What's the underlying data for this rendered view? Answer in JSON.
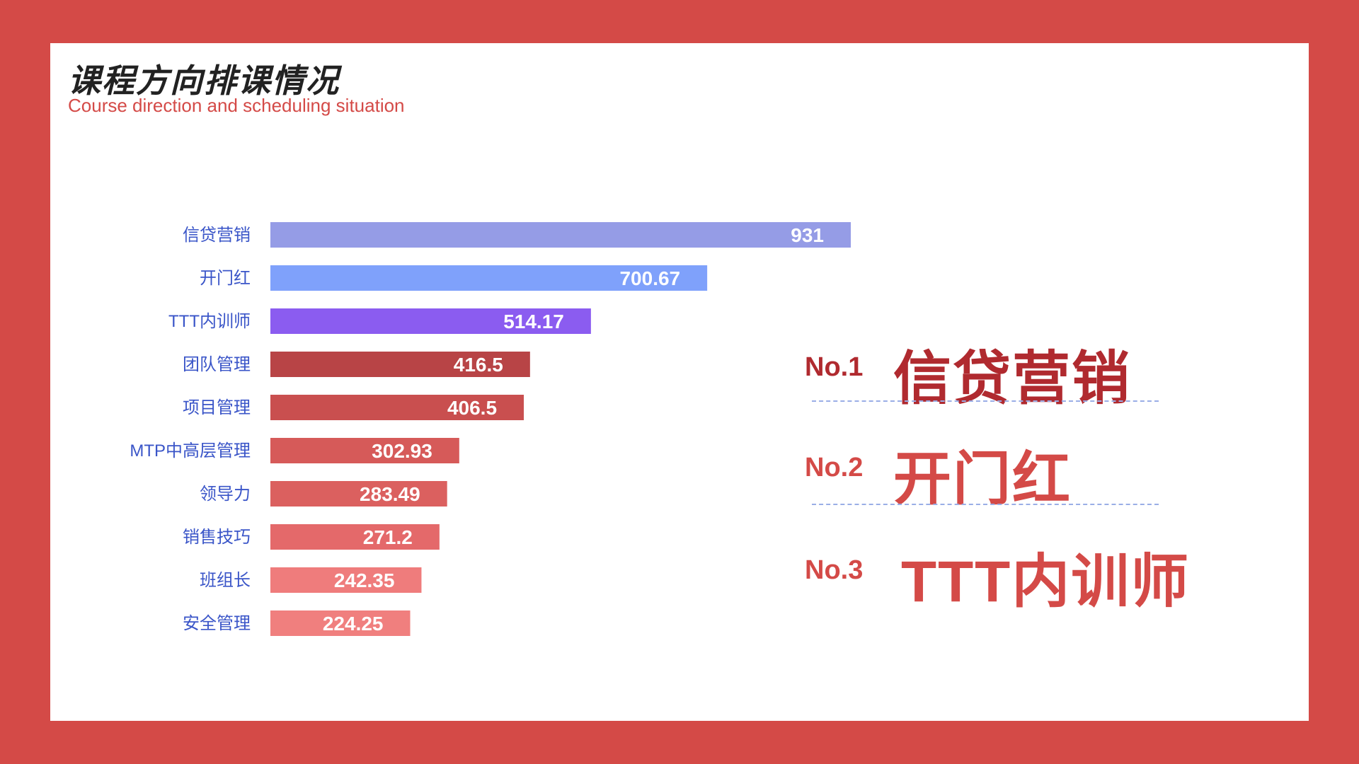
{
  "title": "课程方向排课情况",
  "subtitle": "Course direction and scheduling situation",
  "chart_data": {
    "type": "bar",
    "orientation": "horizontal",
    "categories": [
      "信贷营销",
      "开门红",
      "TTT内训师",
      "团队管理",
      "项目管理",
      "MTP中高层管理",
      "领导力",
      "销售技巧",
      "班组长",
      "安全管理"
    ],
    "values": [
      931,
      700.67,
      514.17,
      416.5,
      406.5,
      302.93,
      283.49,
      271.2,
      242.35,
      224.25
    ],
    "value_labels": [
      "931",
      "700.67",
      "514.17",
      "416.5",
      "406.5",
      "302.93",
      "283.49",
      "271.2",
      "242.35",
      "224.25"
    ],
    "colors": [
      "#959ce6",
      "#7fa1fb",
      "#8b5cf0",
      "#b84446",
      "#c94f4f",
      "#d65a59",
      "#db605f",
      "#e4696a",
      "#ef7c7c",
      "#f07f7e"
    ],
    "category_label_color": "#3a55c8",
    "xlim": [
      0,
      931
    ],
    "grid": false,
    "legend": "none"
  },
  "ranking": [
    {
      "no": "No.1",
      "name": "信贷营销"
    },
    {
      "no": "No.2",
      "name": "开门红"
    },
    {
      "no": "No.3",
      "name": "TTT内训师"
    }
  ]
}
